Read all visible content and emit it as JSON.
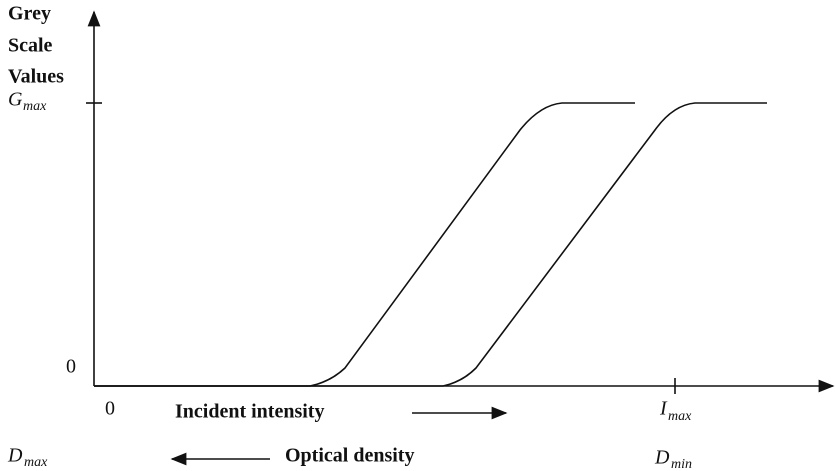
{
  "axis_label": {
    "lines": [
      "Grey",
      "Scale",
      "Values"
    ]
  },
  "y_axis": {
    "top": {
      "symbol": "G",
      "subscript": "max"
    },
    "bottom": "0"
  },
  "x_axis": {
    "origin": "0",
    "label": "Incident intensity",
    "end": {
      "symbol": "I",
      "subscript": "max"
    }
  },
  "density_axis": {
    "start": {
      "symbol": "D",
      "subscript": "max"
    },
    "label": "Optical density",
    "end": {
      "symbol": "D",
      "subscript": "min"
    }
  }
}
